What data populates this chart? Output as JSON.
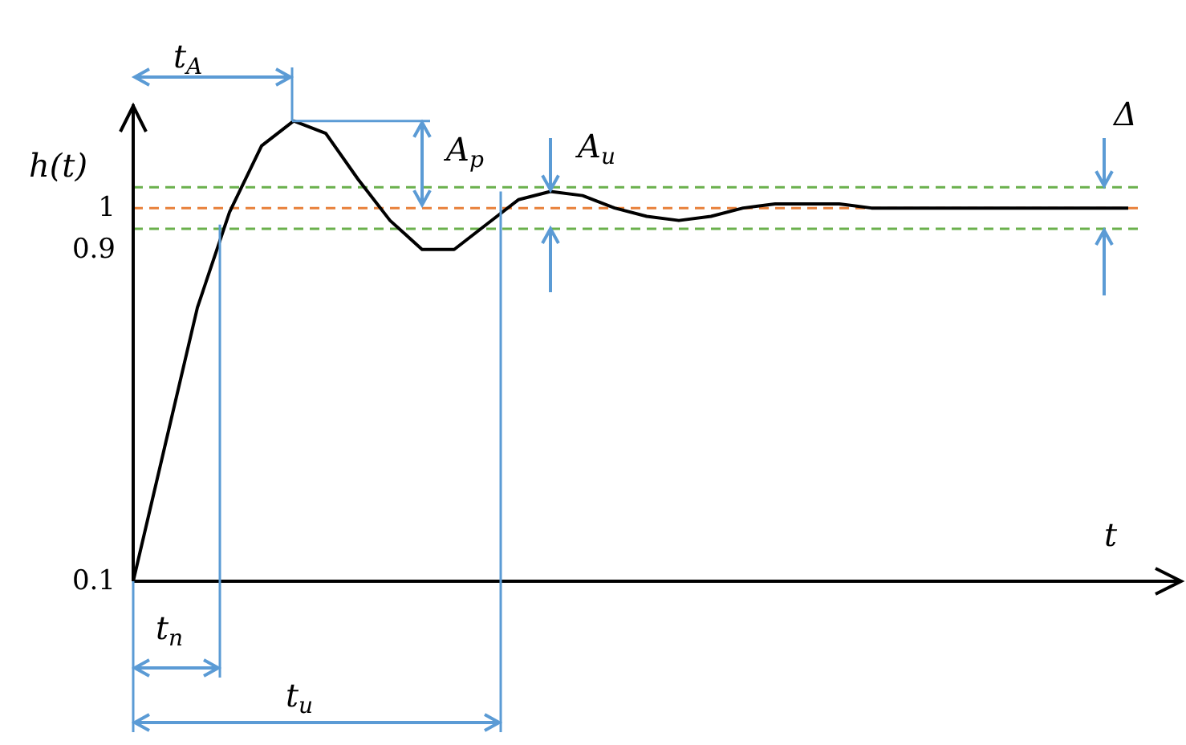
{
  "chart_data": {
    "type": "line",
    "xlabel": "t",
    "ylabel": "h(t)",
    "ylim": [
      0.1,
      1.25
    ],
    "yticks": [
      0.1,
      0.9,
      1
    ],
    "tick_labels": "y",
    "grid": false,
    "marker": "none",
    "line_style": "solid",
    "categories": [
      null,
      null,
      null,
      null,
      null,
      null,
      null,
      null,
      null,
      null,
      null,
      null,
      null,
      null,
      null,
      null,
      null,
      null,
      null,
      null,
      null,
      null,
      null,
      null,
      null,
      null,
      null,
      null,
      null,
      null,
      null,
      null
    ],
    "series": [
      {
        "color": "#000000",
        "values": [
          0.1,
          0.43,
          0.76,
          0.99,
          1.15,
          1.21,
          1.18,
          1.07,
          0.97,
          0.9,
          0.9,
          0.96,
          1.02,
          1.04,
          1.03,
          1.0,
          0.98,
          0.97,
          0.98,
          1.0,
          1.01,
          1.01,
          1.01,
          1.0,
          1.0,
          1.0,
          1.0,
          1.0,
          1.0,
          1.0,
          1.0,
          1.0
        ]
      }
    ],
    "ref_lines": [
      {
        "axis": "y",
        "value": 1,
        "color": "#e8803a",
        "line_style": "dashed"
      },
      {
        "axis": "y",
        "value": 1.05,
        "color": "#6ab04c",
        "line_style": "dashed"
      },
      {
        "axis": "y",
        "value": 0.95,
        "color": "#6ab04c",
        "line_style": "dashed"
      }
    ],
    "annotations": [
      "t$_{A}$",
      "A$_{p}$",
      "A$_{u}$",
      "Δ",
      "t$_{n}$",
      "t$_{u}$"
    ]
  }
}
